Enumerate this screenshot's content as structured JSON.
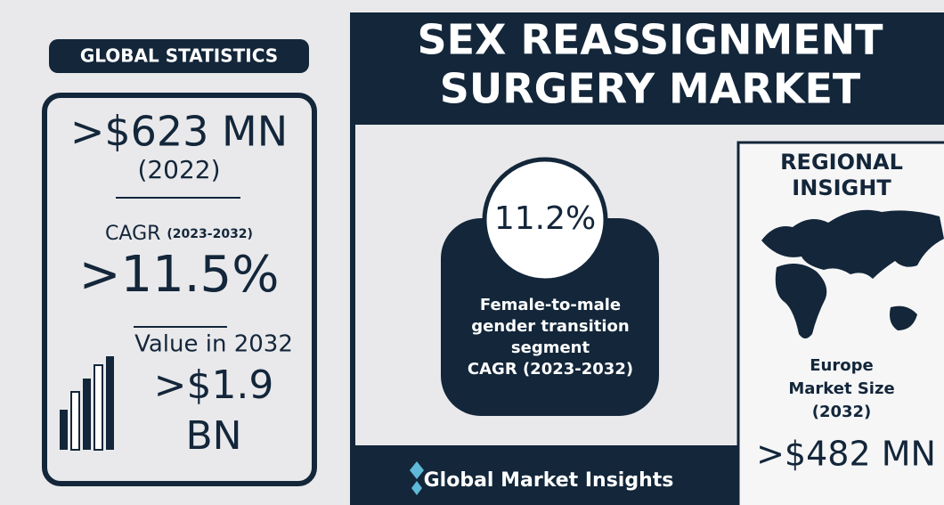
{
  "left_panel": {
    "badge": "GLOBAL STATISTICS",
    "market_value": ">$623 MN",
    "market_year": "(2022)",
    "cagr_label": "CAGR",
    "cagr_period": "(2023-2032)",
    "cagr_value": ">11.5%",
    "future_label": "Value in 2032",
    "future_value_line1": ">$1.9",
    "future_value_line2": "BN"
  },
  "header": {
    "title_line1": "SEX REASSIGNMENT",
    "title_line2": "SURGERY MARKET"
  },
  "segment": {
    "cagr": "11.2%",
    "description": [
      "Female-to-male",
      "gender transition",
      "segment",
      "CAGR (2023-2032)"
    ]
  },
  "regional": {
    "title_line1": "REGIONAL",
    "title_line2": "INSIGHT",
    "caption": [
      "Europe",
      "Market Size",
      "(2032)"
    ],
    "value": ">$482 MN"
  },
  "footer": {
    "brand": "Global Market Insights"
  }
}
